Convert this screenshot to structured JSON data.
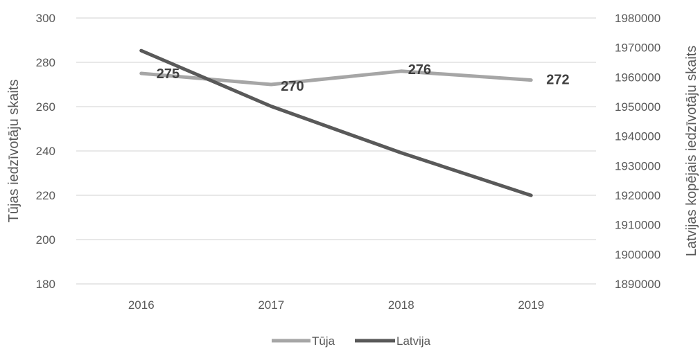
{
  "chart_data": {
    "type": "line",
    "categories": [
      "2016",
      "2017",
      "2018",
      "2019"
    ],
    "y_left": {
      "label": "Tūjas iedzīvotāju skaits",
      "ylim": [
        180,
        300
      ],
      "ticks": [
        "180",
        "200",
        "220",
        "240",
        "260",
        "280",
        "300"
      ]
    },
    "y_right": {
      "label": "Latvijas kopējais iedzīvotāju skaits",
      "ylim": [
        1890000,
        1980000
      ],
      "ticks": [
        "1890000",
        "1900000",
        "1910000",
        "1920000",
        "1930000",
        "1940000",
        "1950000",
        "1960000",
        "1970000",
        "1980000"
      ]
    },
    "series": [
      {
        "name": "Tūja",
        "axis": "left",
        "values": [
          275,
          270,
          276,
          272
        ],
        "data_labels": [
          "275",
          "270",
          "276",
          "272"
        ],
        "color": "#a6a6a6"
      },
      {
        "name": "Latvija",
        "axis": "right",
        "values": [
          1968957,
          1950116,
          1934379,
          1919968
        ],
        "color": "#595959"
      }
    ],
    "grid": true,
    "legend_position": "bottom"
  }
}
